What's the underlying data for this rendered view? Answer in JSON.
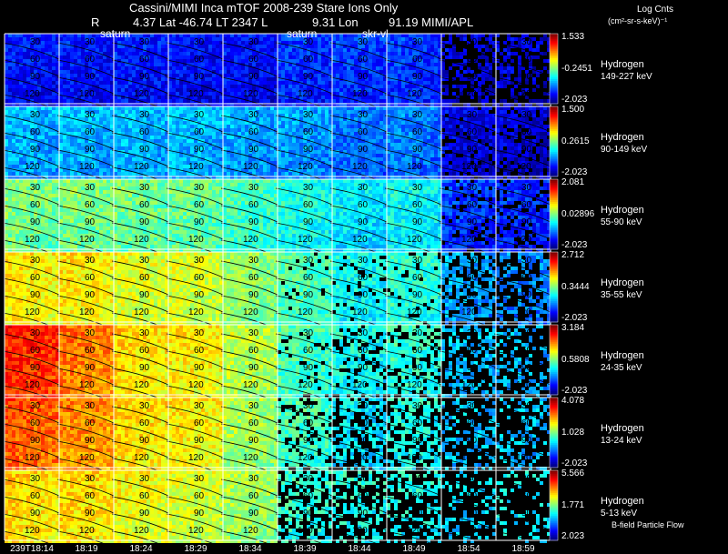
{
  "header": {
    "title": "Cassini/MIMI Inca mTOF  2008-239   Stare    Ions Only",
    "r_label": "R",
    "lat_lt": "4.37 Lat -46.74 LT 2347 L",
    "lon": "9.31 Lon",
    "mimi": "91.19  MIMI/APL"
  },
  "colorbar": {
    "title": "Log Cnts",
    "units": "(cm²-sr-s-keV)⁻¹"
  },
  "marker_labels": [
    "saturn",
    "saturn",
    "skr-vl"
  ],
  "contour_labels": [
    "30",
    "60",
    "90",
    "120"
  ],
  "panels": [
    {
      "species": "Hydrogen",
      "energy": "149-227 keV",
      "cb_max": "1.533",
      "cb_mid": "-0.2451",
      "cb_min": "-2.023"
    },
    {
      "species": "Hydrogen",
      "energy": "90-149 keV",
      "cb_max": "1.500",
      "cb_mid": "0.2615",
      "cb_min": "-2.023"
    },
    {
      "species": "Hydrogen",
      "energy": "55-90 keV",
      "cb_max": "2.081",
      "cb_mid": "0.02896",
      "cb_min": "-2.023"
    },
    {
      "species": "Hydrogen",
      "energy": "35-55 keV",
      "cb_max": "2.712",
      "cb_mid": "0.3444",
      "cb_min": "-2.023"
    },
    {
      "species": "Hydrogen",
      "energy": "24-35 keV",
      "cb_max": "3.184",
      "cb_mid": "0.5808",
      "cb_min": "-2.023"
    },
    {
      "species": "Hydrogen",
      "energy": "13-24 keV",
      "cb_max": "4.078",
      "cb_mid": "1.028",
      "cb_min": "-2.023"
    },
    {
      "species": "Hydrogen",
      "energy": "5-13 keV",
      "cb_max": "5.566",
      "cb_mid": "1.771",
      "cb_min": "2.023"
    }
  ],
  "time_labels": [
    "239T18:14",
    "18:19",
    "18:24",
    "18:29",
    "18:34",
    "18:39",
    "18:44",
    "18:49",
    "18:54",
    "18:59"
  ],
  "footer_label": "B-field Particle Flow",
  "palette": {
    "row_levels": [
      [
        0.1,
        0.1,
        0.11,
        0.09,
        0.09,
        0.13,
        0.14,
        0.14,
        0.05,
        0.05
      ],
      [
        0.26,
        0.27,
        0.27,
        0.27,
        0.25,
        0.24,
        0.2,
        0.21,
        0.06,
        0.05
      ],
      [
        0.46,
        0.46,
        0.45,
        0.44,
        0.4,
        0.36,
        0.32,
        0.34,
        0.14,
        0.13
      ],
      [
        0.6,
        0.6,
        0.56,
        0.55,
        0.48,
        0.41,
        0.35,
        0.38,
        0.25,
        0.22
      ],
      [
        0.8,
        0.72,
        0.62,
        0.6,
        0.52,
        0.4,
        0.35,
        0.38,
        0.28,
        0.26
      ],
      [
        0.75,
        0.7,
        0.62,
        0.6,
        0.5,
        0.4,
        0.32,
        0.36,
        0.28,
        0.28
      ],
      [
        0.62,
        0.62,
        0.58,
        0.55,
        0.5,
        0.38,
        0.36,
        0.36,
        0.3,
        0.33
      ]
    ],
    "row_coverage": [
      [
        1.0,
        1.0,
        1.0,
        1.0,
        1.0,
        1.0,
        1.0,
        1.0,
        0.55,
        0.45
      ],
      [
        1.0,
        1.0,
        1.0,
        1.0,
        1.0,
        1.0,
        1.0,
        1.0,
        0.85,
        0.8
      ],
      [
        1.0,
        1.0,
        1.0,
        1.0,
        1.0,
        1.0,
        1.0,
        1.0,
        0.85,
        0.75
      ],
      [
        1.0,
        1.0,
        1.0,
        1.0,
        1.0,
        0.95,
        0.9,
        0.9,
        0.6,
        0.55
      ],
      [
        1.0,
        1.0,
        1.0,
        1.0,
        1.0,
        0.9,
        0.75,
        0.7,
        0.45,
        0.4
      ],
      [
        1.0,
        1.0,
        1.0,
        1.0,
        1.0,
        0.8,
        0.6,
        0.55,
        0.4,
        0.4
      ],
      [
        1.0,
        1.0,
        1.0,
        1.0,
        1.0,
        0.55,
        0.4,
        0.35,
        0.25,
        0.25
      ]
    ]
  }
}
